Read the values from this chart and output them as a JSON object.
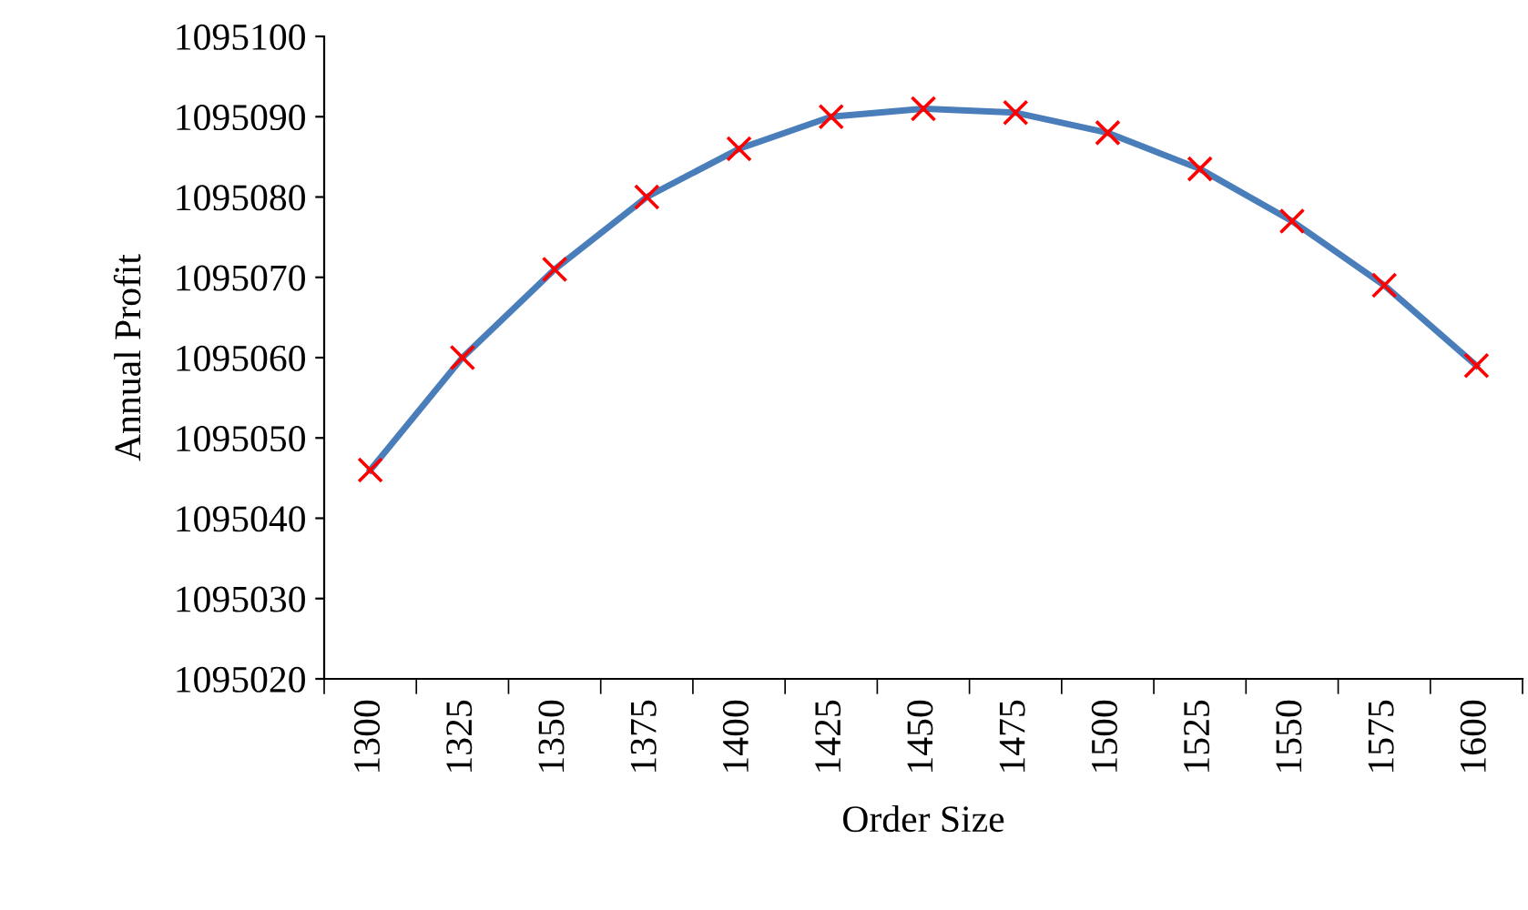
{
  "chart_data": {
    "type": "line",
    "xlabel": "Order Size",
    "ylabel": "Annual Profit",
    "categories": [
      "1300",
      "1325",
      "1350",
      "1375",
      "1400",
      "1425",
      "1450",
      "1475",
      "1500",
      "1525",
      "1550",
      "1575",
      "1600"
    ],
    "series": [
      {
        "color": "#4a7ebb",
        "marker": "none",
        "values": [
          1095046,
          1095060,
          1095071,
          1095080,
          1095086,
          1095090,
          1095091,
          1095090.5,
          1095088,
          1095083.5,
          1095077,
          1095069,
          1095059
        ]
      },
      {
        "type": "scatter",
        "color": "#ff0000",
        "marker": "cross",
        "values": [
          1095046,
          1095060,
          1095071,
          1095080,
          1095086,
          1095090,
          1095091,
          1095090.5,
          1095088,
          1095083.5,
          1095077,
          1095069,
          1095059
        ]
      }
    ],
    "ylim": [
      1095020,
      1095100
    ],
    "yticks": [
      1095020,
      1095030,
      1095040,
      1095050,
      1095060,
      1095070,
      1095080,
      1095090,
      1095100
    ],
    "grid": false,
    "legend": false
  }
}
